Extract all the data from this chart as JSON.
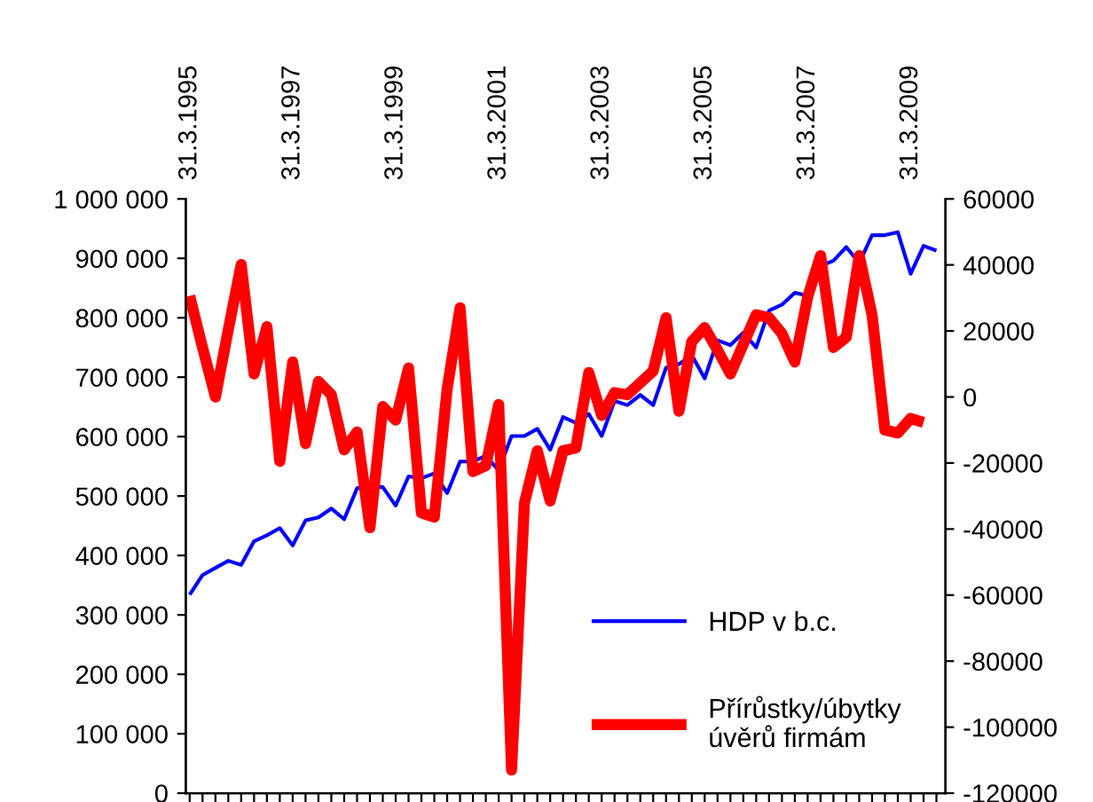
{
  "chart_data": {
    "type": "line",
    "categories": [
      "31.3.1995",
      null,
      null,
      null,
      null,
      null,
      null,
      null,
      "31.3.1997",
      null,
      null,
      null,
      null,
      null,
      null,
      null,
      "31.3.1999",
      null,
      null,
      null,
      null,
      null,
      null,
      null,
      "31.3.2001",
      null,
      null,
      null,
      null,
      null,
      null,
      null,
      "31.3.2003",
      null,
      null,
      null,
      null,
      null,
      null,
      null,
      "31.3.2005",
      null,
      null,
      null,
      null,
      null,
      null,
      null,
      "31.3.2007",
      null,
      null,
      null,
      null,
      null,
      null,
      null,
      "31.3.2009",
      null,
      null
    ],
    "series": [
      {
        "name": "HDP v b.c.",
        "color": "#0000ff",
        "values": [
          334000,
          367000,
          379000,
          391000,
          384000,
          424000,
          434000,
          446000,
          417000,
          459000,
          464000,
          479000,
          461000,
          513000,
          516000,
          515000,
          484000,
          533000,
          530000,
          538000,
          505000,
          558000,
          558000,
          568000,
          543000,
          601000,
          601000,
          613000,
          578000,
          633000,
          623000,
          638000,
          601000,
          660000,
          653000,
          670000,
          653000,
          716000,
          722000,
          737000,
          698000,
          762000,
          754000,
          775000,
          750000,
          812000,
          822000,
          842000,
          837000,
          887000,
          896000,
          919000,
          892000,
          939000,
          939000,
          944000,
          874000,
          921000,
          913000
        ]
      },
      {
        "name": "Přírůstky/úbytky úvěrů firmám",
        "color": "#ff0000",
        "axis": "y2",
        "values": [
          30600,
          15000,
          0,
          20400,
          40100,
          7000,
          21300,
          -19500,
          10600,
          -14100,
          4700,
          700,
          -16000,
          -10600,
          -39600,
          -2900,
          -7000,
          8800,
          -35100,
          -36400,
          2500,
          27000,
          -22600,
          -20800,
          -2300,
          -113000,
          -32100,
          -16300,
          -31500,
          -16300,
          -15400,
          7400,
          -5600,
          1300,
          700,
          4300,
          7900,
          24000,
          -4300,
          16800,
          21000,
          14200,
          7000,
          16000,
          24900,
          24000,
          19200,
          10600,
          30300,
          42800,
          15000,
          18100,
          42800,
          24900,
          -10000,
          -10900,
          -6500,
          -7700,
          null
        ]
      }
    ],
    "ylim": [
      0,
      1000000
    ],
    "yticks": [
      {
        "value": 0,
        "label": "0"
      },
      {
        "value": 100000,
        "label": "100 000"
      },
      {
        "value": 200000,
        "label": "200 000"
      },
      {
        "value": 300000,
        "label": "300 000"
      },
      {
        "value": 400000,
        "label": "400 000"
      },
      {
        "value": 500000,
        "label": "500 000"
      },
      {
        "value": 600000,
        "label": "600 000"
      },
      {
        "value": 700000,
        "label": "700 000"
      },
      {
        "value": 800000,
        "label": "800 000"
      },
      {
        "value": 900000,
        "label": "900 000"
      },
      {
        "value": 1000000,
        "label": "1 000 000"
      }
    ],
    "y2lim": [
      -120000,
      60000
    ],
    "y2ticks": [
      -120000,
      -100000,
      -80000,
      -60000,
      -40000,
      -20000,
      0,
      20000,
      40000,
      60000
    ],
    "grid": false,
    "legend": "bottom right",
    "marker": "none",
    "line_style": "solid"
  }
}
